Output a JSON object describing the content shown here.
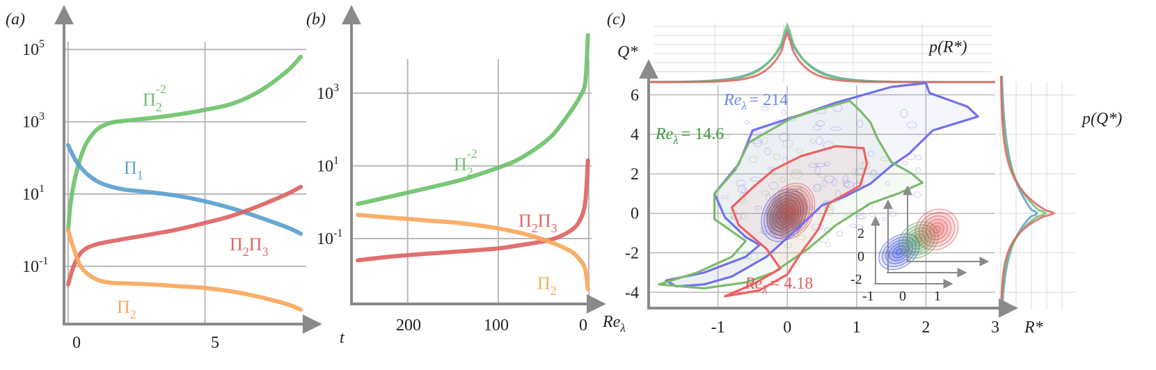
{
  "colors": {
    "axis": "#8a8a8a",
    "grid": "#b8b8b8",
    "green": "#6cc26a",
    "blue": "#5b9fcf",
    "red": "#e06363",
    "orange": "#f9a75c",
    "contour_blue": "#1c2fe0",
    "contour_green": "#3a9a3a",
    "contour_red": "#e04040",
    "outline_blue": "#7070f0",
    "outline_green": "#7cba6c",
    "outline_red": "#f06060",
    "text_blue": "#6a8ae0",
    "text_green": "#3a9a3a",
    "text_red": "#d86060"
  },
  "chart_data": [
    {
      "panel_label": "(a)",
      "type": "line",
      "y_scale": "log",
      "xlabel": "t",
      "x_ticks": [
        "0",
        "5"
      ],
      "y_ticks": [
        "10",
        "10",
        "10",
        "10"
      ],
      "y_tick_exponents": [
        "-1",
        "1",
        "3",
        "5"
      ],
      "xlim": [
        -0.15,
        8.7
      ],
      "ylim_log10": [
        -2.6,
        5.6
      ],
      "series": [
        {
          "name": "Π",
          "sub": "2",
          "sup": "-2",
          "color": "green",
          "x": [
            0,
            0.1,
            0.3,
            0.6,
            1.0,
            1.5,
            2.0,
            3.0,
            4.0,
            5.0,
            6.0,
            7.0,
            8.0,
            8.5
          ],
          "log10y": [
            0.0,
            0.8,
            1.6,
            2.3,
            2.75,
            2.96,
            3.02,
            3.1,
            3.2,
            3.33,
            3.5,
            3.85,
            4.4,
            4.8
          ]
        },
        {
          "name": "Π",
          "sub": "1",
          "color": "blue",
          "x": [
            0,
            0.3,
            0.7,
            1.2,
            2,
            3,
            4,
            5,
            6,
            7,
            8,
            8.5
          ],
          "log10y": [
            2.35,
            1.9,
            1.55,
            1.3,
            1.13,
            1.05,
            0.95,
            0.8,
            0.6,
            0.35,
            0.08,
            -0.1
          ]
        },
        {
          "name": "ΠΠ",
          "sub": "2",
          "sub2": "3",
          "color": "red",
          "x": [
            0,
            0.2,
            0.5,
            1,
            2,
            3,
            4,
            5,
            6,
            7,
            8,
            8.5
          ],
          "log10y": [
            -1.5,
            -1.0,
            -0.6,
            -0.4,
            -0.25,
            -0.12,
            0.02,
            0.2,
            0.4,
            0.68,
            1.0,
            1.2
          ]
        },
        {
          "name": "Π",
          "sub": "2",
          "color": "orange",
          "x": [
            0,
            0.2,
            0.5,
            1,
            1.5,
            2,
            3,
            4,
            5,
            6,
            7,
            8,
            8.5
          ],
          "log10y": [
            0.0,
            -0.5,
            -1.05,
            -1.35,
            -1.45,
            -1.47,
            -1.5,
            -1.55,
            -1.6,
            -1.7,
            -1.85,
            -2.05,
            -2.2
          ]
        }
      ]
    },
    {
      "panel_label": "(b)",
      "type": "line",
      "y_scale": "log",
      "xlabel": "Re",
      "xlabel_sub": "λ",
      "x_ticks": [
        "200",
        "100",
        "0"
      ],
      "y_ticks": [
        "10",
        "10",
        "10"
      ],
      "y_tick_exponents": [
        "-1",
        "1",
        "3"
      ],
      "xlim_reversed": [
        262,
        -3
      ],
      "ylim_log10": [
        -2.8,
        4.8
      ],
      "series": [
        {
          "name": "Π",
          "sub": "2",
          "sup": "-2",
          "color": "green",
          "x": [
            255,
            220,
            180,
            140,
            100,
            80,
            60,
            40,
            20,
            10,
            4,
            1
          ],
          "log10y": [
            -0.05,
            0.15,
            0.38,
            0.62,
            0.95,
            1.15,
            1.45,
            1.85,
            2.5,
            2.9,
            3.3,
            4.6
          ]
        },
        {
          "name": "ΠΠ",
          "sub": "2",
          "sub2": "3",
          "color": "red",
          "x": [
            255,
            220,
            180,
            140,
            100,
            80,
            60,
            40,
            20,
            10,
            4,
            1
          ],
          "log10y": [
            -1.6,
            -1.5,
            -1.42,
            -1.35,
            -1.27,
            -1.2,
            -1.12,
            -1.02,
            -0.78,
            -0.5,
            0.0,
            1.15
          ]
        },
        {
          "name": "Π",
          "sub": "2",
          "color": "orange",
          "x": [
            255,
            220,
            180,
            140,
            100,
            80,
            60,
            40,
            20,
            10,
            4,
            1
          ],
          "log10y": [
            -0.35,
            -0.42,
            -0.5,
            -0.58,
            -0.72,
            -0.82,
            -0.95,
            -1.12,
            -1.35,
            -1.58,
            -1.85,
            -2.4
          ]
        }
      ]
    },
    {
      "panel_label": "(c)",
      "type": "contour",
      "xlabel": "R*",
      "ylabel": "Q*",
      "x_ticks": [
        "-1",
        "0",
        "1",
        "2",
        "3"
      ],
      "y_ticks": [
        "-4",
        "-2",
        "0",
        "2",
        "4",
        "6"
      ],
      "xlim": [
        -2,
        3
      ],
      "ylim": [
        -4.8,
        7
      ],
      "labels": [
        {
          "text": "Re",
          "sub": "λ",
          "value": "= 214",
          "color": "text_blue"
        },
        {
          "text": "Re",
          "sub": "λ",
          "value": "= 14.6",
          "color": "text_green"
        },
        {
          "text": "Re",
          "sub": "λ",
          "value": "= 4.18",
          "color": "text_red"
        }
      ],
      "outlines": [
        {
          "name": "Re 214",
          "color": "outline_blue",
          "points": [
            [
              -1.75,
              -3.4
            ],
            [
              -1.2,
              -3.0
            ],
            [
              -0.6,
              -2.2
            ],
            [
              -0.4,
              -1.6
            ],
            [
              -0.6,
              -1.2
            ],
            [
              -0.9,
              -0.2
            ],
            [
              -1.05,
              1.0
            ],
            [
              -0.7,
              2.5
            ],
            [
              -0.5,
              4.2
            ],
            [
              0.2,
              5.0
            ],
            [
              0.7,
              5.6
            ],
            [
              1.5,
              6.4
            ],
            [
              2.0,
              6.6
            ],
            [
              2.05,
              6.1
            ],
            [
              2.6,
              5.4
            ],
            [
              2.75,
              4.9
            ],
            [
              2.1,
              4.2
            ],
            [
              1.75,
              3.0
            ],
            [
              1.5,
              2.4
            ],
            [
              1.2,
              1.5
            ],
            [
              0.8,
              0.8
            ],
            [
              0.5,
              0.4
            ],
            [
              0.2,
              -0.6
            ],
            [
              -0.3,
              -2.2
            ],
            [
              -0.8,
              -3.2
            ],
            [
              -1.2,
              -3.6
            ],
            [
              -1.6,
              -3.7
            ],
            [
              -1.75,
              -3.4
            ]
          ]
        },
        {
          "name": "Re 14.6",
          "color": "outline_green",
          "points": [
            [
              -1.85,
              -3.6
            ],
            [
              -1.3,
              -3.0
            ],
            [
              -0.8,
              -2.2
            ],
            [
              -0.6,
              -1.4
            ],
            [
              -1.05,
              -0.3
            ],
            [
              -1.05,
              1.0
            ],
            [
              -0.75,
              2.2
            ],
            [
              -0.55,
              3.6
            ],
            [
              0.05,
              4.8
            ],
            [
              0.4,
              5.2
            ],
            [
              0.9,
              5.7
            ],
            [
              1.05,
              5.2
            ],
            [
              1.2,
              4.6
            ],
            [
              1.3,
              3.8
            ],
            [
              1.5,
              2.6
            ],
            [
              1.8,
              2.0
            ],
            [
              1.95,
              1.55
            ],
            [
              1.6,
              1.0
            ],
            [
              1.2,
              0.5
            ],
            [
              0.7,
              -0.6
            ],
            [
              0.3,
              -1.8
            ],
            [
              -0.2,
              -3.0
            ],
            [
              -0.6,
              -3.5
            ],
            [
              -1.2,
              -3.8
            ],
            [
              -1.85,
              -3.6
            ]
          ]
        },
        {
          "name": "Re 4.18",
          "color": "outline_red",
          "points": [
            [
              -0.9,
              -4.2
            ],
            [
              -0.5,
              -3.6
            ],
            [
              -0.1,
              -2.8
            ],
            [
              -0.3,
              -1.8
            ],
            [
              -0.7,
              -0.6
            ],
            [
              -0.8,
              0.3
            ],
            [
              -0.5,
              1.3
            ],
            [
              -0.2,
              2.2
            ],
            [
              0.2,
              2.9
            ],
            [
              0.7,
              3.4
            ],
            [
              1.1,
              3.3
            ],
            [
              1.15,
              2.5
            ],
            [
              1.05,
              1.4
            ],
            [
              0.6,
              0.5
            ],
            [
              0.45,
              -0.8
            ],
            [
              0.2,
              -2.0
            ],
            [
              0.0,
              -3.1
            ],
            [
              -0.4,
              -3.9
            ],
            [
              -0.9,
              -4.2
            ]
          ]
        }
      ],
      "inset_x_ticks": [
        "-1",
        "0",
        "1"
      ],
      "inset_y_ticks": [
        "-2",
        "0",
        "2"
      ],
      "marginal_top_label": "p(R*)",
      "marginal_right_label": "p(Q*)"
    }
  ]
}
